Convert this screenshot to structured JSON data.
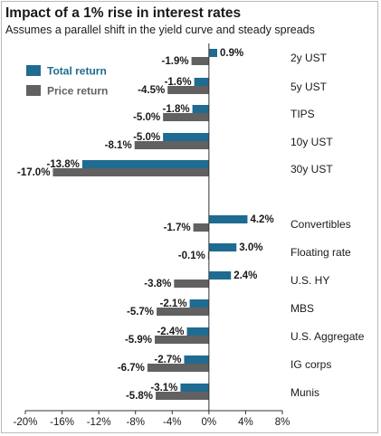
{
  "title": "Impact of a 1% rise in interest rates",
  "subtitle": "Assumes a parallel shift in the yield curve and steady spreads",
  "colors": {
    "total": "#1f6b92",
    "price": "#616161",
    "axis": "#333333",
    "text": "#1a1a1a"
  },
  "chart_data": {
    "type": "bar",
    "orientation": "horizontal",
    "title": "Impact of a 1% rise in interest rates",
    "subtitle": "Assumes a parallel shift in the yield curve and steady spreads",
    "legend_position": "top-left",
    "grid": false,
    "xlim": [
      -20,
      8
    ],
    "xticks": [
      "-20%",
      "-16%",
      "-12%",
      "-8%",
      "-4%",
      "0%",
      "4%",
      "8%"
    ],
    "xtick_values": [
      -20,
      -16,
      -12,
      -8,
      -4,
      0,
      4,
      8
    ],
    "categories": [
      "2y UST",
      "5y UST",
      "TIPS",
      "10y UST",
      "30y UST",
      "Convertibles",
      "Floating rate",
      "U.S. HY",
      "MBS",
      "U.S. Aggregate",
      "IG corps",
      "Munis"
    ],
    "series": [
      {
        "name": "Total return",
        "values": [
          0.9,
          -1.6,
          -1.8,
          -5.0,
          -13.8,
          4.2,
          3.0,
          2.4,
          -2.1,
          -2.4,
          -2.7,
          -3.1
        ],
        "labels": [
          "0.9%",
          "-1.6%",
          "-1.8%",
          "-5.0%",
          "-13.8%",
          "4.2%",
          "3.0%",
          "2.4%",
          "-2.1%",
          "-2.4%",
          "-2.7%",
          "-3.1%"
        ]
      },
      {
        "name": "Price return",
        "values": [
          -1.9,
          -4.5,
          -5.0,
          -8.1,
          -17.0,
          -1.7,
          -0.1,
          -3.8,
          -5.7,
          -5.9,
          -6.7,
          -5.8
        ],
        "labels": [
          "-1.9%",
          "-4.5%",
          "-5.0%",
          "-8.1%",
          "-17.0%",
          "-1.7%",
          "-0.1%",
          "-3.8%",
          "-5.7%",
          "-5.9%",
          "-6.7%",
          "-5.8%"
        ]
      }
    ]
  }
}
